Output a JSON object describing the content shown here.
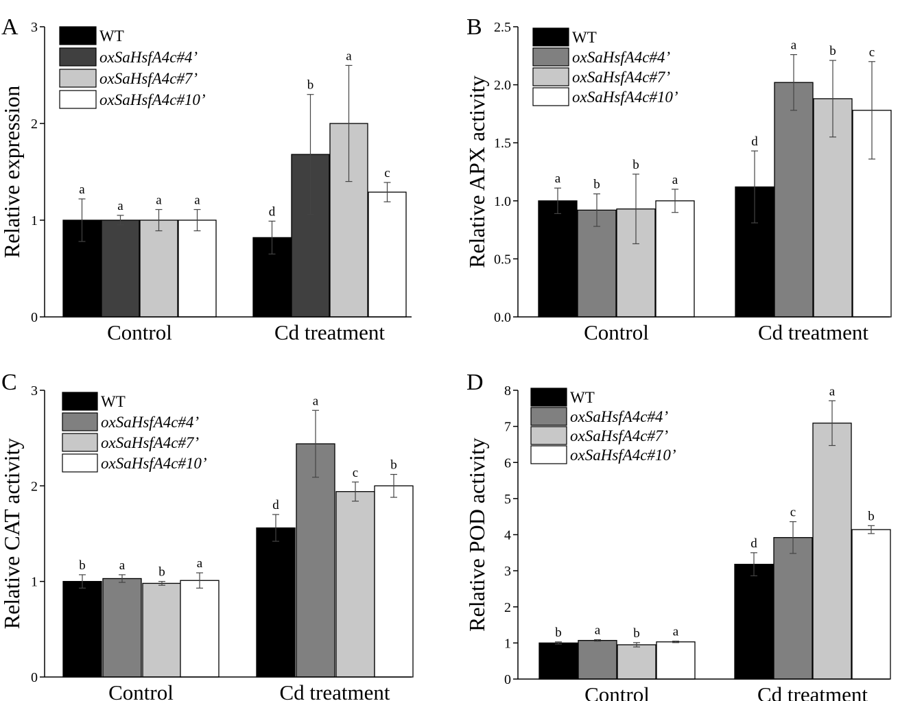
{
  "chart_data": [
    {
      "type": "bar",
      "panel": "A",
      "ylabel": "Relative expression",
      "xlabel": "",
      "ylim": [
        0,
        3
      ],
      "yticks": [
        0,
        1,
        2,
        3
      ],
      "ytick_labels": [
        "0",
        "1",
        "2",
        "3"
      ],
      "categories": [
        "Control",
        "Cd treatment"
      ],
      "legend": [
        "WT",
        "oxSaHsfA4c#4’",
        "oxSaHsfA4c#7’",
        "oxSaHsfA4c#10’"
      ],
      "colors": [
        "#000000",
        "#404040",
        "#c8c8c8",
        "#ffffff"
      ],
      "series": [
        {
          "name": "WT",
          "values": [
            1.0,
            0.82
          ],
          "errors": [
            0.22,
            0.17
          ],
          "letters": [
            "a",
            "d"
          ]
        },
        {
          "name": "oxSaHsfA4c#4’",
          "values": [
            1.0,
            1.68
          ],
          "errors": [
            0.05,
            0.62
          ],
          "letters": [
            "a",
            "b"
          ]
        },
        {
          "name": "oxSaHsfA4c#7’",
          "values": [
            1.0,
            2.0
          ],
          "errors": [
            0.11,
            0.6
          ],
          "letters": [
            "a",
            "a"
          ]
        },
        {
          "name": "oxSaHsfA4c#10’",
          "values": [
            1.0,
            1.29
          ],
          "errors": [
            0.11,
            0.1
          ],
          "letters": [
            "a",
            "c"
          ]
        }
      ]
    },
    {
      "type": "bar",
      "panel": "B",
      "ylabel": "Relative APX activity",
      "xlabel": "",
      "ylim": [
        0,
        2.5
      ],
      "yticks": [
        0,
        0.5,
        1.0,
        1.5,
        2.0,
        2.5
      ],
      "ytick_labels": [
        "0.0",
        "0.5",
        "1.0",
        "1.5",
        "2.0",
        "2.5"
      ],
      "categories": [
        "Control",
        "Cd treatment"
      ],
      "legend": [
        "WT",
        "oxSaHsfA4c#4’",
        "oxSaHsfA4c#7’",
        "oxSaHsfA4c#10’"
      ],
      "colors": [
        "#000000",
        "#808080",
        "#c8c8c8",
        "#ffffff"
      ],
      "series": [
        {
          "name": "WT",
          "values": [
            1.0,
            1.12
          ],
          "errors": [
            0.11,
            0.31
          ],
          "letters": [
            "a",
            "d"
          ]
        },
        {
          "name": "oxSaHsfA4c#4’",
          "values": [
            0.92,
            2.02
          ],
          "errors": [
            0.14,
            0.24
          ],
          "letters": [
            "b",
            "a"
          ]
        },
        {
          "name": "oxSaHsfA4c#7’",
          "values": [
            0.93,
            1.88
          ],
          "errors": [
            0.3,
            0.33
          ],
          "letters": [
            "b",
            "b"
          ]
        },
        {
          "name": "oxSaHsfA4c#10’",
          "values": [
            1.0,
            1.78
          ],
          "errors": [
            0.1,
            0.42
          ],
          "letters": [
            "a",
            "c"
          ]
        }
      ]
    },
    {
      "type": "bar",
      "panel": "C",
      "ylabel": "Relative CAT activity",
      "xlabel": "",
      "ylim": [
        0,
        3
      ],
      "yticks": [
        0,
        1,
        2,
        3
      ],
      "ytick_labels": [
        "0",
        "1",
        "2",
        "3"
      ],
      "categories": [
        "Control",
        "Cd treatment"
      ],
      "legend": [
        "WT",
        "oxSaHsfA4c#4’",
        "oxSaHsfA4c#7’",
        "oxSaHsfA4c#10’"
      ],
      "colors": [
        "#000000",
        "#808080",
        "#c8c8c8",
        "#ffffff"
      ],
      "series": [
        {
          "name": "WT",
          "values": [
            1.0,
            1.56
          ],
          "errors": [
            0.07,
            0.14
          ],
          "letters": [
            "b",
            "d"
          ]
        },
        {
          "name": "oxSaHsfA4c#4’",
          "values": [
            1.03,
            2.44
          ],
          "errors": [
            0.04,
            0.35
          ],
          "letters": [
            "a",
            "a"
          ]
        },
        {
          "name": "oxSaHsfA4c#7’",
          "values": [
            0.98,
            1.94
          ],
          "errors": [
            0.02,
            0.1
          ],
          "letters": [
            "b",
            "c"
          ]
        },
        {
          "name": "oxSaHsfA4c#10’",
          "values": [
            1.01,
            2.0
          ],
          "errors": [
            0.08,
            0.12
          ],
          "letters": [
            "a",
            "b"
          ]
        }
      ]
    },
    {
      "type": "bar",
      "panel": "D",
      "ylabel": "Relative POD activity",
      "xlabel": "",
      "ylim": [
        0,
        8
      ],
      "yticks": [
        0,
        1,
        2,
        3,
        4,
        5,
        6,
        7,
        8
      ],
      "ytick_labels": [
        "0",
        "1",
        "2",
        "3",
        "4",
        "5",
        "6",
        "7",
        "8"
      ],
      "categories": [
        "Control",
        "Cd treatment"
      ],
      "legend": [
        "WT",
        "oxSaHsfA4c#4’",
        "oxSaHsfA4c#7’",
        "oxSaHsfA4c#10’"
      ],
      "colors": [
        "#000000",
        "#808080",
        "#c8c8c8",
        "#ffffff"
      ],
      "series": [
        {
          "name": "WT",
          "values": [
            1.0,
            3.18
          ],
          "errors": [
            0.03,
            0.32
          ],
          "letters": [
            "b",
            "d"
          ]
        },
        {
          "name": "oxSaHsfA4c#4’",
          "values": [
            1.07,
            3.92
          ],
          "errors": [
            0.02,
            0.44
          ],
          "letters": [
            "a",
            "c"
          ]
        },
        {
          "name": "oxSaHsfA4c#7’",
          "values": [
            0.95,
            7.09
          ],
          "errors": [
            0.06,
            0.62
          ],
          "letters": [
            "b",
            "a"
          ]
        },
        {
          "name": "oxSaHsfA4c#10’",
          "values": [
            1.03,
            4.14
          ],
          "errors": [
            0.02,
            0.11
          ],
          "letters": [
            "a",
            "b"
          ]
        }
      ]
    }
  ]
}
